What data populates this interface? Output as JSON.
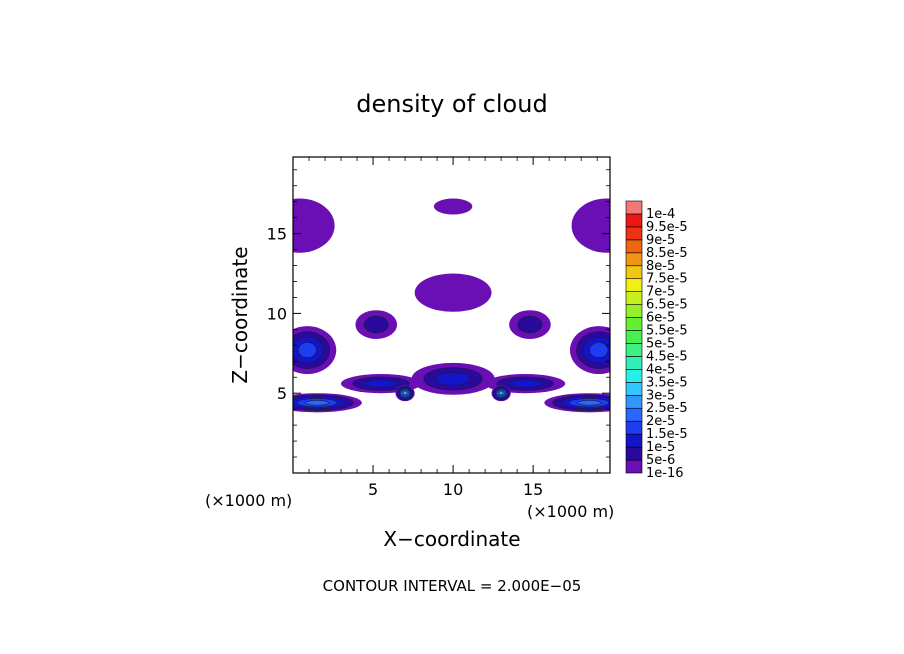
{
  "chart_data": {
    "type": "heatmap",
    "title": "density of cloud",
    "xlabel": "X−coordinate",
    "ylabel": "Z−coordinate",
    "x_unit_left": "(×1000 m)",
    "x_unit_right": "(×1000 m)",
    "xlim": [
      0,
      19.8
    ],
    "ylim": [
      0,
      19.8
    ],
    "x_ticks": [
      5,
      10,
      15
    ],
    "y_ticks": [
      5,
      10,
      15
    ],
    "footer": "CONTOUR INTERVAL = 2.000E−05",
    "colorbar": {
      "labels": [
        "1e-16",
        "5e-6",
        "1e-5",
        "1.5e-5",
        "2e-5",
        "2.5e-5",
        "3e-5",
        "3.5e-5",
        "4e-5",
        "4.5e-5",
        "5e-5",
        "5.5e-5",
        "6e-5",
        "6.5e-5",
        "7e-5",
        "7.5e-5",
        "8e-5",
        "8.5e-5",
        "9e-5",
        "9.5e-5",
        "1e-4"
      ],
      "colors": [
        "#6a0fb4",
        "#2a0a9c",
        "#1414c8",
        "#1e3cf0",
        "#2868ff",
        "#3296ff",
        "#32c8ff",
        "#28f0e6",
        "#32f0b4",
        "#3cf082",
        "#46f050",
        "#64f032",
        "#96f028",
        "#c8f01e",
        "#f0f014",
        "#f0c814",
        "#f09614",
        "#f06414",
        "#f03214",
        "#f01414",
        "#f07878"
      ]
    },
    "blobs": [
      {
        "x": 0.4,
        "z": 15.5,
        "rx": 2.2,
        "rz": 1.7,
        "level": 0,
        "peak": 5.5e-06
      },
      {
        "x": 19.6,
        "z": 15.5,
        "rx": 2.2,
        "rz": 1.7,
        "level": 0,
        "peak": 5.5e-06
      },
      {
        "x": 10.0,
        "z": 16.7,
        "rx": 1.2,
        "rz": 0.5,
        "level": 0,
        "peak": 2e-06
      },
      {
        "x": 10.0,
        "z": 11.3,
        "rx": 2.4,
        "rz": 1.2,
        "level": 0,
        "peak": 5e-06
      },
      {
        "x": 5.2,
        "z": 9.3,
        "rx": 1.3,
        "rz": 0.9,
        "level": 1,
        "peak": 6e-06
      },
      {
        "x": 14.8,
        "z": 9.3,
        "rx": 1.3,
        "rz": 0.9,
        "level": 1,
        "peak": 6e-06
      },
      {
        "x": 0.9,
        "z": 7.7,
        "rx": 1.8,
        "rz": 1.5,
        "level": 3,
        "peak": 2e-05
      },
      {
        "x": 19.1,
        "z": 7.7,
        "rx": 1.8,
        "rz": 1.5,
        "level": 3,
        "peak": 2e-05
      },
      {
        "x": 10.0,
        "z": 5.9,
        "rx": 2.6,
        "rz": 1.0,
        "level": 2,
        "peak": 1.5e-05
      },
      {
        "x": 5.5,
        "z": 5.6,
        "rx": 2.5,
        "rz": 0.6,
        "level": 2,
        "peak": 1.5e-05
      },
      {
        "x": 14.5,
        "z": 5.6,
        "rx": 2.5,
        "rz": 0.6,
        "level": 2,
        "peak": 1.5e-05
      },
      {
        "x": 7.0,
        "z": 5.0,
        "rx": 0.6,
        "rz": 0.5,
        "level": 6,
        "peak": 3e-05
      },
      {
        "x": 13.0,
        "z": 5.0,
        "rx": 0.6,
        "rz": 0.5,
        "level": 6,
        "peak": 3e-05
      },
      {
        "x": 1.5,
        "z": 4.4,
        "rx": 2.8,
        "rz": 0.6,
        "level": 4,
        "peak": 2.5e-05
      },
      {
        "x": 18.5,
        "z": 4.4,
        "rx": 2.8,
        "rz": 0.6,
        "level": 4,
        "peak": 2.5e-05
      }
    ]
  }
}
